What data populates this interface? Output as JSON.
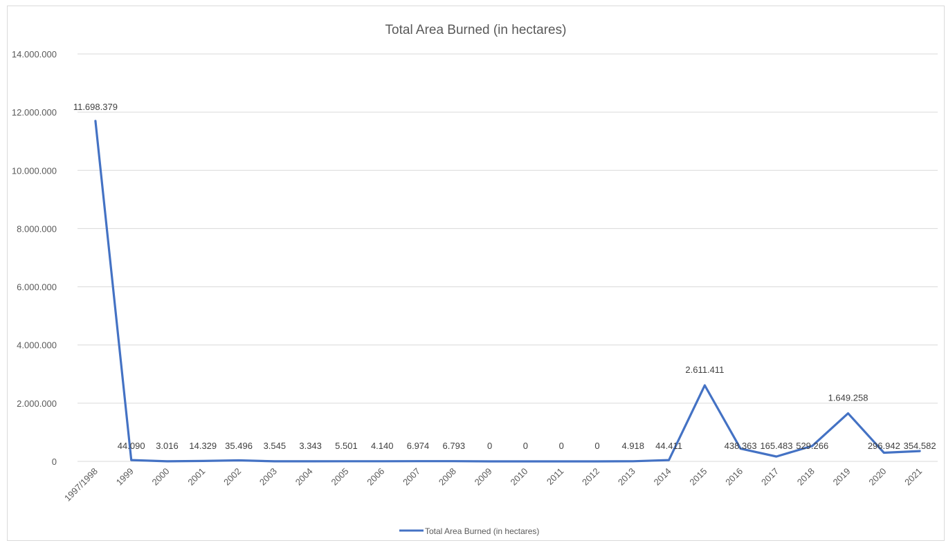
{
  "chart_data": {
    "type": "line",
    "title": "Total Area Burned (in hectares)",
    "xlabel": "",
    "ylabel": "",
    "categories": [
      "1997/1998",
      "1999",
      "2000",
      "2001",
      "2002",
      "2003",
      "2004",
      "2005",
      "2006",
      "2007",
      "2008",
      "2009",
      "2010",
      "2011",
      "2012",
      "2013",
      "2014",
      "2015",
      "2016",
      "2017",
      "2018",
      "2019",
      "2020",
      "2021"
    ],
    "series": [
      {
        "name": "Total Area Burned (in hectares)",
        "values": [
          11698379,
          44090,
          3016,
          14329,
          35496,
          3545,
          3343,
          5501,
          4140,
          6974,
          6793,
          0,
          0,
          0,
          0,
          4918,
          44411,
          2611411,
          438363,
          165483,
          529266,
          1649258,
          296942,
          354582
        ],
        "data_labels": [
          "11.698.379",
          "44.090",
          "3.016",
          "14.329",
          "35.496",
          "3.545",
          "3.343",
          "5.501",
          "4.140",
          "6.974",
          "6.793",
          "0",
          "0",
          "0",
          "0",
          "4.918",
          "44.411",
          "2.611.411",
          "438.363",
          "165.483",
          "529.266",
          "1.649.258",
          "296.942",
          "354.582"
        ],
        "color": "#4472c4"
      }
    ],
    "ylim": [
      0,
      14000000
    ],
    "y_ticks": [
      0,
      2000000,
      4000000,
      6000000,
      8000000,
      10000000,
      12000000,
      14000000
    ],
    "y_tick_labels": [
      "0",
      "2.000.000",
      "4.000.000",
      "6.000.000",
      "8.000.000",
      "10.000.000",
      "12.000.000",
      "14.000.000"
    ],
    "grid": true,
    "legend_position": "bottom",
    "colors": {
      "series": "#4472c4",
      "gridline": "#d9d9d9",
      "text": "#595959"
    }
  }
}
